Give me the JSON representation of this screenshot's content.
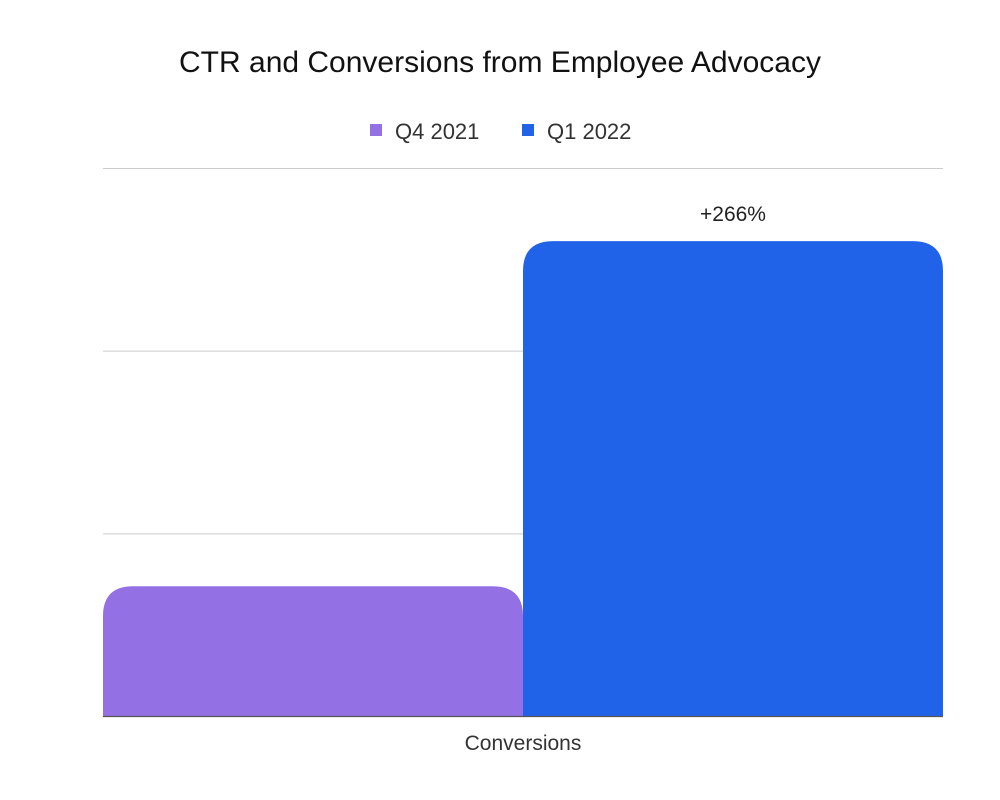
{
  "chart_data": {
    "type": "bar",
    "title": "CTR and Conversions from Employee Advocacy",
    "categories": [
      "Conversions"
    ],
    "series": [
      {
        "name": "Q4 2021",
        "values": [
          0.71
        ],
        "color": "#9370E3"
      },
      {
        "name": "Q1 2022",
        "values": [
          2.6
        ],
        "color": "#2163E8",
        "data_label": "+266%"
      }
    ],
    "ylim": [
      0,
      3
    ],
    "gridlines": [
      1,
      2,
      3
    ],
    "grid": true,
    "y_tick_labels_shown": false,
    "legend_placement": "top-center",
    "xlabel": "",
    "ylabel": ""
  }
}
